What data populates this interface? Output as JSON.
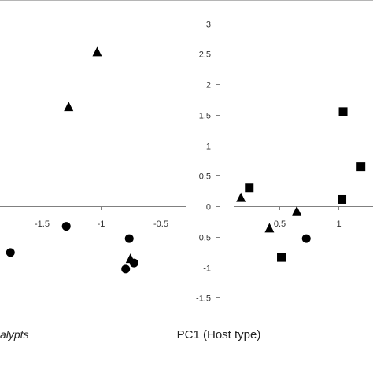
{
  "chart_data": {
    "type": "scatter",
    "xlabel": "PC1 (Host type)",
    "left_label_fragment": "alypts",
    "xlim": [
      -1.9,
      1.25
    ],
    "ylim": [
      -1.5,
      3
    ],
    "xticks": [
      "-1.5",
      "-1",
      "-0.5",
      "0.5",
      "1"
    ],
    "xtick_values": [
      -1.5,
      -1,
      -0.5,
      0.5,
      1
    ],
    "yticks": [
      "3",
      "2.5",
      "2",
      "1.5",
      "1",
      "0.5",
      "0",
      "-0.5",
      "-1",
      "-1.5"
    ],
    "ytick_values": [
      3,
      2.5,
      2,
      1.5,
      1,
      0.5,
      0,
      -0.5,
      -1,
      -1.5
    ],
    "series": [
      {
        "marker": "triangle",
        "color": "#000000",
        "points": [
          {
            "x": -1.03,
            "y": 2.53
          },
          {
            "x": -1.27,
            "y": 1.63
          },
          {
            "x": -0.75,
            "y": -0.86
          },
          {
            "x": 0.18,
            "y": 0.14
          },
          {
            "x": 0.42,
            "y": -0.36
          },
          {
            "x": 0.65,
            "y": -0.08
          }
        ]
      },
      {
        "marker": "circle",
        "color": "#000000",
        "points": [
          {
            "x": -1.29,
            "y": -0.33
          },
          {
            "x": -1.76,
            "y": -0.76
          },
          {
            "x": -0.76,
            "y": -0.53
          },
          {
            "x": -0.72,
            "y": -0.93
          },
          {
            "x": -0.79,
            "y": -1.03
          },
          {
            "x": 0.73,
            "y": -0.53
          }
        ]
      },
      {
        "marker": "square",
        "color": "#000000",
        "points": [
          {
            "x": 1.04,
            "y": 1.55
          },
          {
            "x": 1.19,
            "y": 0.65
          },
          {
            "x": 1.03,
            "y": 0.11
          },
          {
            "x": 0.25,
            "y": 0.3
          },
          {
            "x": 0.52,
            "y": -0.84
          }
        ]
      }
    ]
  }
}
